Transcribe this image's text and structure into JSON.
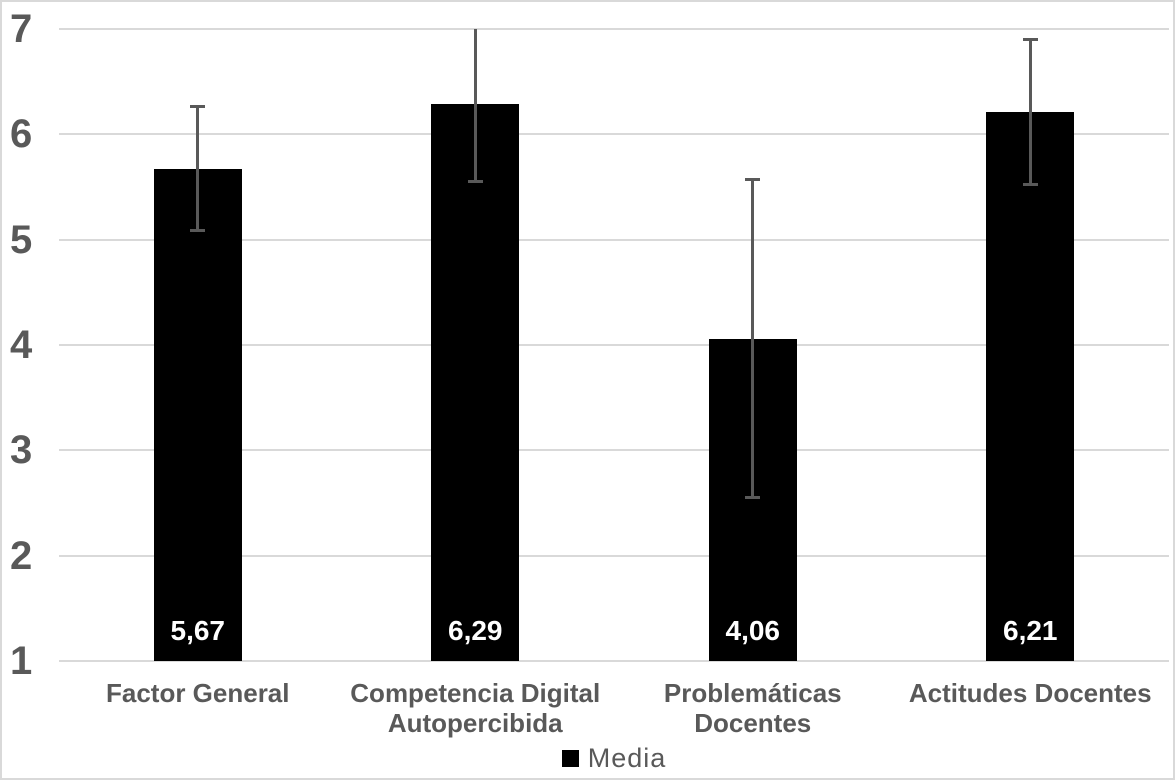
{
  "chart_data": {
    "type": "bar",
    "title": "",
    "xlabel": "",
    "ylabel": "",
    "categories": [
      "Factor General",
      "Competencia Digital Autopercibida",
      "Problemáticas Docentes",
      "Actitudes Docentes"
    ],
    "series": [
      {
        "name": "Media",
        "values": [
          5.67,
          6.29,
          4.06,
          6.21
        ],
        "value_labels": [
          "5,67",
          "6,29",
          "4,06",
          "6,21"
        ],
        "error_upper": [
          6.26,
          7.02,
          5.57,
          6.9
        ],
        "error_lower": [
          5.09,
          5.55,
          2.55,
          5.52
        ]
      }
    ],
    "ylim": [
      1,
      7
    ],
    "yticks": [
      "1",
      "2",
      "3",
      "4",
      "5",
      "6",
      "7"
    ],
    "grid": true,
    "legend_position": "bottom",
    "colors": {
      "bar": "#000000",
      "value_label": "#ffffff",
      "axis_text": "#595959",
      "gridline": "#d9d9d9",
      "error_bar": "#595959",
      "border": "#d9d9d9",
      "background": "#ffffff"
    }
  },
  "legend": {
    "label": "Media",
    "swatch_color": "#000000"
  }
}
